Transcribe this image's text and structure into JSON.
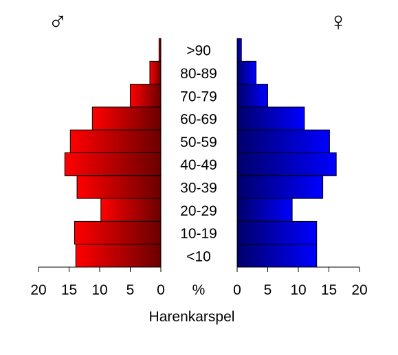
{
  "chart_data": {
    "type": "bar",
    "orientation": "horizontal",
    "layout": "population-pyramid",
    "xlabel": "Harenkarspel",
    "percent_label": "%",
    "xlim": [
      0,
      20
    ],
    "x_ticks": [
      "20",
      "15",
      "10",
      "5",
      "0",
      "0",
      "5",
      "10",
      "15",
      "20"
    ],
    "categories": [
      ">90",
      "80-89",
      "70-79",
      "60-69",
      "50-59",
      "40-49",
      "30-39",
      "20-29",
      "10-19",
      "<10"
    ],
    "series": [
      {
        "symbol": "♂",
        "side": "left",
        "color": "#ff0000",
        "color_dark": "#6a0000",
        "values": [
          0.3,
          1.8,
          5.0,
          11.2,
          14.8,
          15.7,
          13.7,
          9.8,
          14.1,
          13.9
        ]
      },
      {
        "symbol": "♀",
        "side": "right",
        "color": "#0000ff",
        "color_dark": "#00006a",
        "values": [
          0.7,
          3.1,
          5.0,
          11.0,
          15.1,
          16.2,
          14.0,
          9.0,
          13.0,
          13.0
        ]
      }
    ]
  }
}
